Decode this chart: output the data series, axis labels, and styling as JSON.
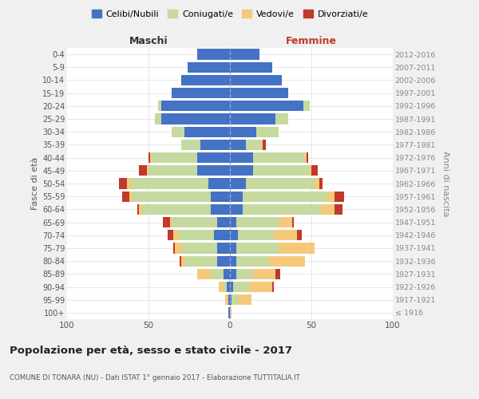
{
  "age_groups": [
    "100+",
    "95-99",
    "90-94",
    "85-89",
    "80-84",
    "75-79",
    "70-74",
    "65-69",
    "60-64",
    "55-59",
    "50-54",
    "45-49",
    "40-44",
    "35-39",
    "30-34",
    "25-29",
    "20-24",
    "15-19",
    "10-14",
    "5-9",
    "0-4"
  ],
  "birth_years": [
    "≤ 1916",
    "1917-1921",
    "1922-1926",
    "1927-1931",
    "1932-1936",
    "1937-1941",
    "1942-1946",
    "1947-1951",
    "1952-1956",
    "1957-1961",
    "1962-1966",
    "1967-1971",
    "1972-1976",
    "1977-1981",
    "1982-1986",
    "1987-1991",
    "1992-1996",
    "1997-2001",
    "2002-2006",
    "2007-2011",
    "2012-2016"
  ],
  "colors": {
    "celibe": "#4472c4",
    "coniugato": "#c5d9a0",
    "vedovo": "#f5c97a",
    "divorziato": "#c0392b"
  },
  "maschi": {
    "celibe": [
      1,
      1,
      2,
      4,
      8,
      8,
      10,
      8,
      12,
      12,
      13,
      20,
      20,
      18,
      28,
      42,
      42,
      36,
      30,
      26,
      20
    ],
    "coniugato": [
      0,
      0,
      2,
      8,
      20,
      22,
      22,
      28,
      42,
      48,
      48,
      30,
      28,
      12,
      8,
      4,
      2,
      0,
      0,
      0,
      0
    ],
    "vedovo": [
      0,
      2,
      3,
      8,
      2,
      4,
      3,
      1,
      2,
      2,
      2,
      1,
      1,
      0,
      0,
      0,
      0,
      0,
      0,
      0,
      0
    ],
    "divorziato": [
      0,
      0,
      0,
      0,
      1,
      1,
      3,
      4,
      1,
      4,
      5,
      5,
      1,
      0,
      0,
      0,
      0,
      0,
      0,
      0,
      0
    ]
  },
  "femmine": {
    "celibe": [
      0,
      1,
      2,
      4,
      4,
      4,
      5,
      4,
      8,
      8,
      10,
      14,
      14,
      10,
      16,
      28,
      45,
      36,
      32,
      26,
      18
    ],
    "coniugato": [
      0,
      4,
      10,
      10,
      20,
      26,
      22,
      26,
      48,
      52,
      42,
      35,
      32,
      10,
      14,
      8,
      4,
      0,
      0,
      0,
      0
    ],
    "vedovo": [
      1,
      8,
      14,
      14,
      22,
      22,
      14,
      8,
      8,
      4,
      3,
      1,
      1,
      0,
      0,
      0,
      0,
      0,
      0,
      0,
      0
    ],
    "divorziato": [
      0,
      0,
      1,
      3,
      0,
      0,
      3,
      1,
      5,
      6,
      2,
      4,
      1,
      2,
      0,
      0,
      0,
      0,
      0,
      0,
      0
    ]
  },
  "xlim": 100,
  "title": "Popolazione per età, sesso e stato civile - 2017",
  "subtitle": "COMUNE DI TONARA (NU) - Dati ISTAT 1° gennaio 2017 - Elaborazione TUTTITALIA.IT",
  "ylabel_left": "Fasce di età",
  "ylabel_right": "Anni di nascita",
  "xlabel_maschi": "Maschi",
  "xlabel_femmine": "Femmine",
  "legend_labels": [
    "Celibi/Nubili",
    "Coniugati/e",
    "Vedovi/e",
    "Divorziati/e"
  ],
  "bg_color": "#f0f0f0",
  "plot_bg": "#ffffff",
  "grid_color": "#cccccc"
}
